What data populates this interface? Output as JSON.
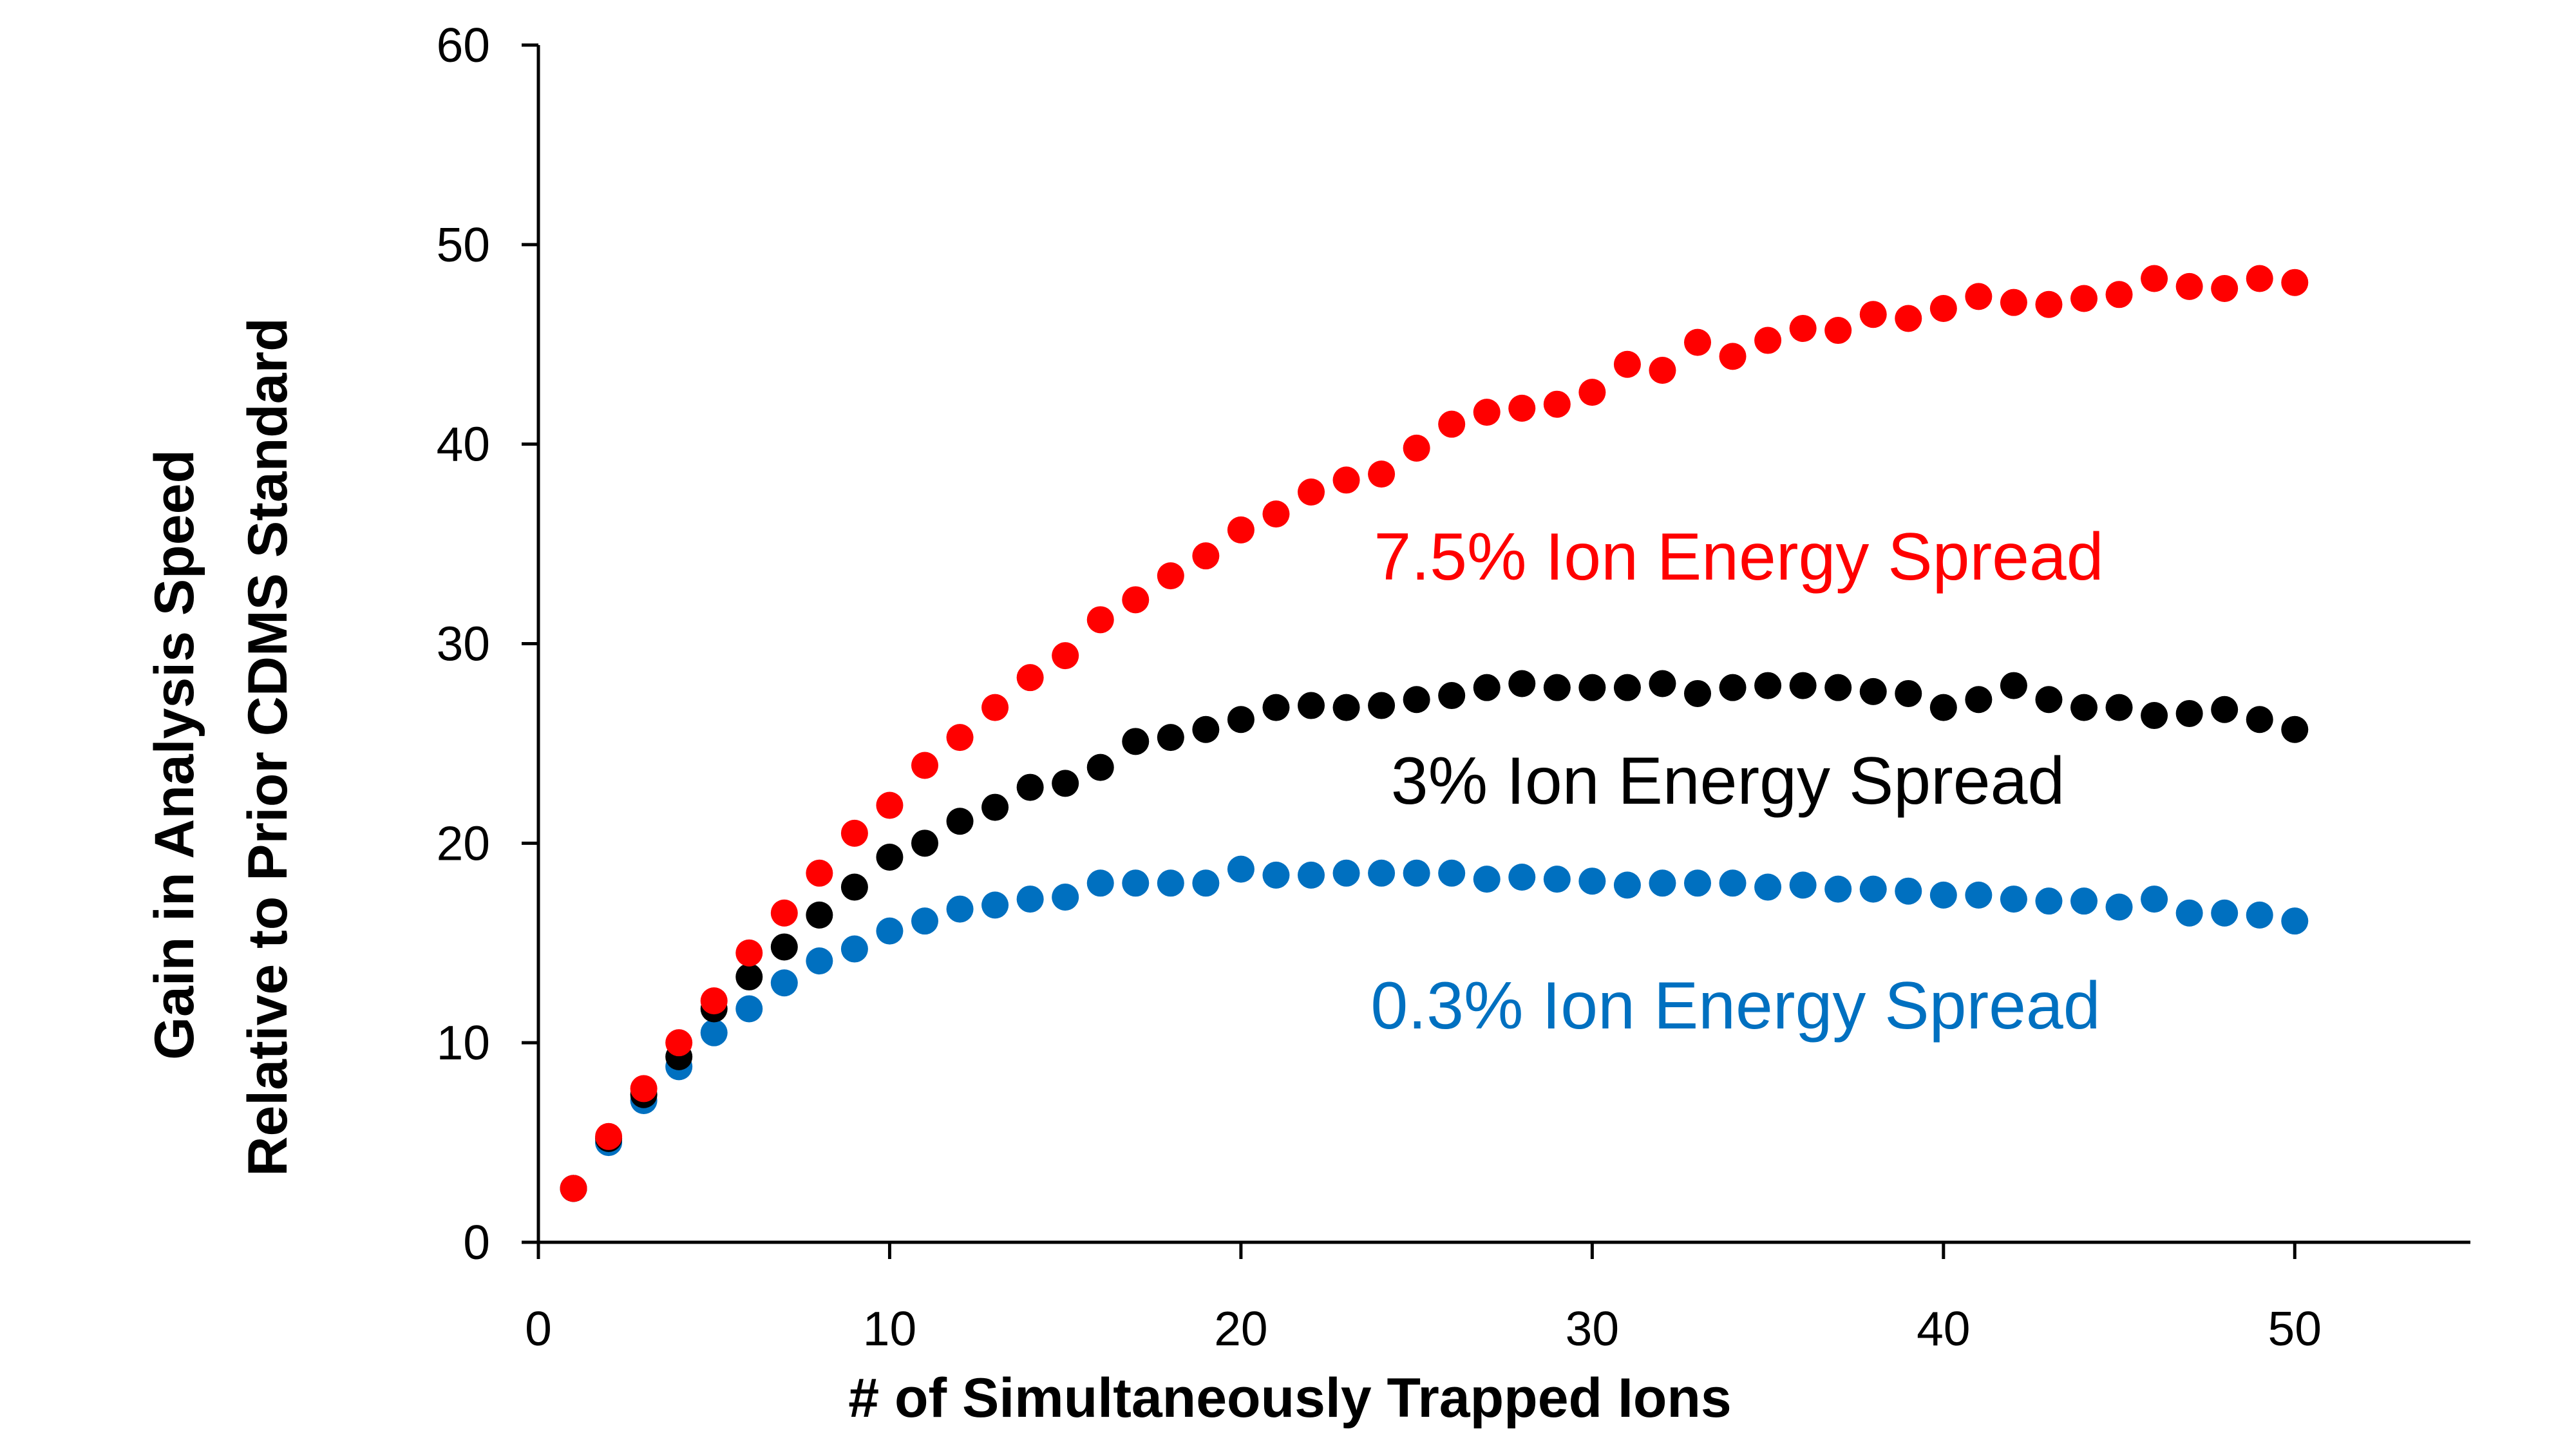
{
  "chart_data": {
    "type": "scatter",
    "xlabel": "# of Simultaneously Trapped Ions",
    "ylabel_lines": [
      "Gain in Analysis Speed",
      "Relative to Prior CDMS Standard"
    ],
    "xlim": [
      0,
      55
    ],
    "ylim": [
      0,
      60
    ],
    "x_ticks": [
      0,
      10,
      20,
      30,
      40,
      50
    ],
    "y_ticks": [
      0,
      10,
      20,
      30,
      40,
      50,
      60
    ],
    "grid": false,
    "x": [
      1,
      2,
      3,
      4,
      5,
      6,
      7,
      8,
      9,
      10,
      11,
      12,
      13,
      14,
      15,
      16,
      17,
      18,
      19,
      20,
      21,
      22,
      23,
      24,
      25,
      26,
      27,
      28,
      29,
      30,
      31,
      32,
      33,
      34,
      35,
      36,
      37,
      38,
      39,
      40,
      41,
      42,
      43,
      44,
      45,
      46,
      47,
      48,
      49,
      50
    ],
    "series": [
      {
        "name": "0.3% Ion Energy Spread",
        "color": "#0070C0",
        "values": [
          2.7,
          5.0,
          7.1,
          8.8,
          10.5,
          11.7,
          13.0,
          14.1,
          14.7,
          15.6,
          16.1,
          16.7,
          16.9,
          17.2,
          17.3,
          18.0,
          18.0,
          18.0,
          18.0,
          18.7,
          18.4,
          18.4,
          18.5,
          18.5,
          18.5,
          18.5,
          18.2,
          18.3,
          18.2,
          18.1,
          17.9,
          18.0,
          18.0,
          18.0,
          17.8,
          17.9,
          17.7,
          17.7,
          17.6,
          17.4,
          17.4,
          17.2,
          17.1,
          17.1,
          16.8,
          17.2,
          16.5,
          16.5,
          16.4,
          16.1
        ]
      },
      {
        "name": "3% Ion Energy Spread",
        "color": "#000000",
        "values": [
          2.7,
          5.2,
          7.4,
          9.3,
          11.7,
          13.3,
          14.8,
          16.4,
          17.8,
          19.3,
          20.0,
          21.1,
          21.8,
          22.8,
          23.0,
          23.8,
          25.1,
          25.3,
          25.7,
          26.2,
          26.8,
          26.9,
          26.8,
          26.9,
          27.2,
          27.4,
          27.8,
          28.0,
          27.8,
          27.8,
          27.8,
          28.0,
          27.5,
          27.8,
          27.9,
          27.9,
          27.8,
          27.6,
          27.5,
          26.8,
          27.2,
          27.9,
          27.2,
          26.8,
          26.8,
          26.4,
          26.5,
          26.7,
          26.2,
          25.7
        ]
      },
      {
        "name": "7.5% Ion Energy Spread",
        "color": "#FF0000",
        "values": [
          2.7,
          5.3,
          7.7,
          10.0,
          12.1,
          14.5,
          16.5,
          18.5,
          20.5,
          21.9,
          23.9,
          25.3,
          26.8,
          28.3,
          29.4,
          31.2,
          32.2,
          33.4,
          34.4,
          35.7,
          36.5,
          37.6,
          38.2,
          38.5,
          39.8,
          41.0,
          41.6,
          41.8,
          42.0,
          42.6,
          44.0,
          43.7,
          45.1,
          44.4,
          45.2,
          45.8,
          45.7,
          46.5,
          46.3,
          46.8,
          47.4,
          47.1,
          47.0,
          47.3,
          47.5,
          48.3,
          47.9,
          47.8,
          48.3,
          48.1
        ]
      }
    ]
  }
}
